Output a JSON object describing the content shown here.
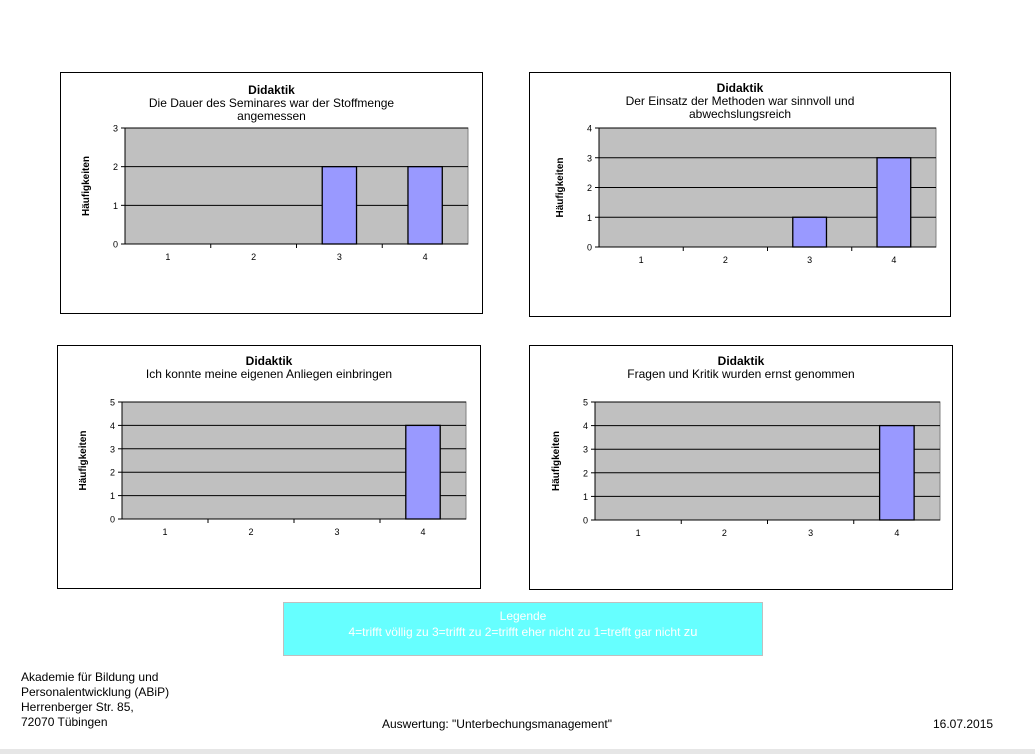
{
  "chart_data": [
    {
      "type": "bar",
      "title": "Didaktik",
      "subtitle": "Die Dauer des Seminares war der Stoffmenge angemessen",
      "subtitle_lines": [
        "Die Dauer des Seminares war der Stoffmenge",
        "angemessen"
      ],
      "ylabel": "Häufigkeiten",
      "categories": [
        "1",
        "2",
        "3",
        "4"
      ],
      "values": [
        0,
        0,
        2,
        2
      ],
      "ylim": [
        0,
        3
      ],
      "yticks": [
        "0",
        "1",
        "2",
        "3"
      ],
      "grid": true,
      "bar_color": "#9999ff",
      "plot_bg": "#c0c0c0"
    },
    {
      "type": "bar",
      "title": "Didaktik",
      "subtitle": "Der Einsatz der Methoden war sinnvoll und abwechslungsreich",
      "subtitle_lines": [
        "Der Einsatz der Methoden war sinnvoll und",
        "abwechslungsreich"
      ],
      "ylabel": "Häufigkeiten",
      "categories": [
        "1",
        "2",
        "3",
        "4"
      ],
      "values": [
        0,
        0,
        1,
        3
      ],
      "ylim": [
        0,
        4
      ],
      "yticks": [
        "0",
        "1",
        "2",
        "3",
        "4"
      ],
      "grid": true,
      "bar_color": "#9999ff",
      "plot_bg": "#c0c0c0"
    },
    {
      "type": "bar",
      "title": "Didaktik",
      "subtitle": "Ich konnte meine eigenen Anliegen einbringen",
      "subtitle_lines": [
        "Ich konnte meine eigenen Anliegen einbringen"
      ],
      "ylabel": "Häufigkeiten",
      "categories": [
        "1",
        "2",
        "3",
        "4"
      ],
      "values": [
        0,
        0,
        0,
        4
      ],
      "ylim": [
        0,
        5
      ],
      "yticks": [
        "0",
        "1",
        "2",
        "3",
        "4",
        "5"
      ],
      "grid": true,
      "bar_color": "#9999ff",
      "plot_bg": "#c0c0c0"
    },
    {
      "type": "bar",
      "title": "Didaktik",
      "subtitle": "Fragen und Kritik wurden ernst genommen",
      "subtitle_lines": [
        "Fragen und Kritik wurden ernst genommen"
      ],
      "ylabel": "Häufigkeiten",
      "categories": [
        "1",
        "2",
        "3",
        "4"
      ],
      "values": [
        0,
        0,
        0,
        4
      ],
      "ylim": [
        0,
        5
      ],
      "yticks": [
        "0",
        "1",
        "2",
        "3",
        "4",
        "5"
      ],
      "grid": true,
      "bar_color": "#9999ff",
      "plot_bg": "#c0c0c0"
    }
  ],
  "legend": {
    "title": "Legende",
    "text_main": "4=trifft völlig zu 3=trifft zu 2=trifft eher nicht zu 1=trefft gar nicht",
    "text_tail": "zu",
    "bg_color": "#66ffff"
  },
  "footer": {
    "address_lines": [
      "Akademie für Bildung und",
      "Personalentwicklung (ABiP)",
      "Herrenberger Str. 85,",
      "72070 Tübingen"
    ],
    "center": "Auswertung: \"Unterbechungsmanagement\"",
    "date": "16.07.2015"
  }
}
